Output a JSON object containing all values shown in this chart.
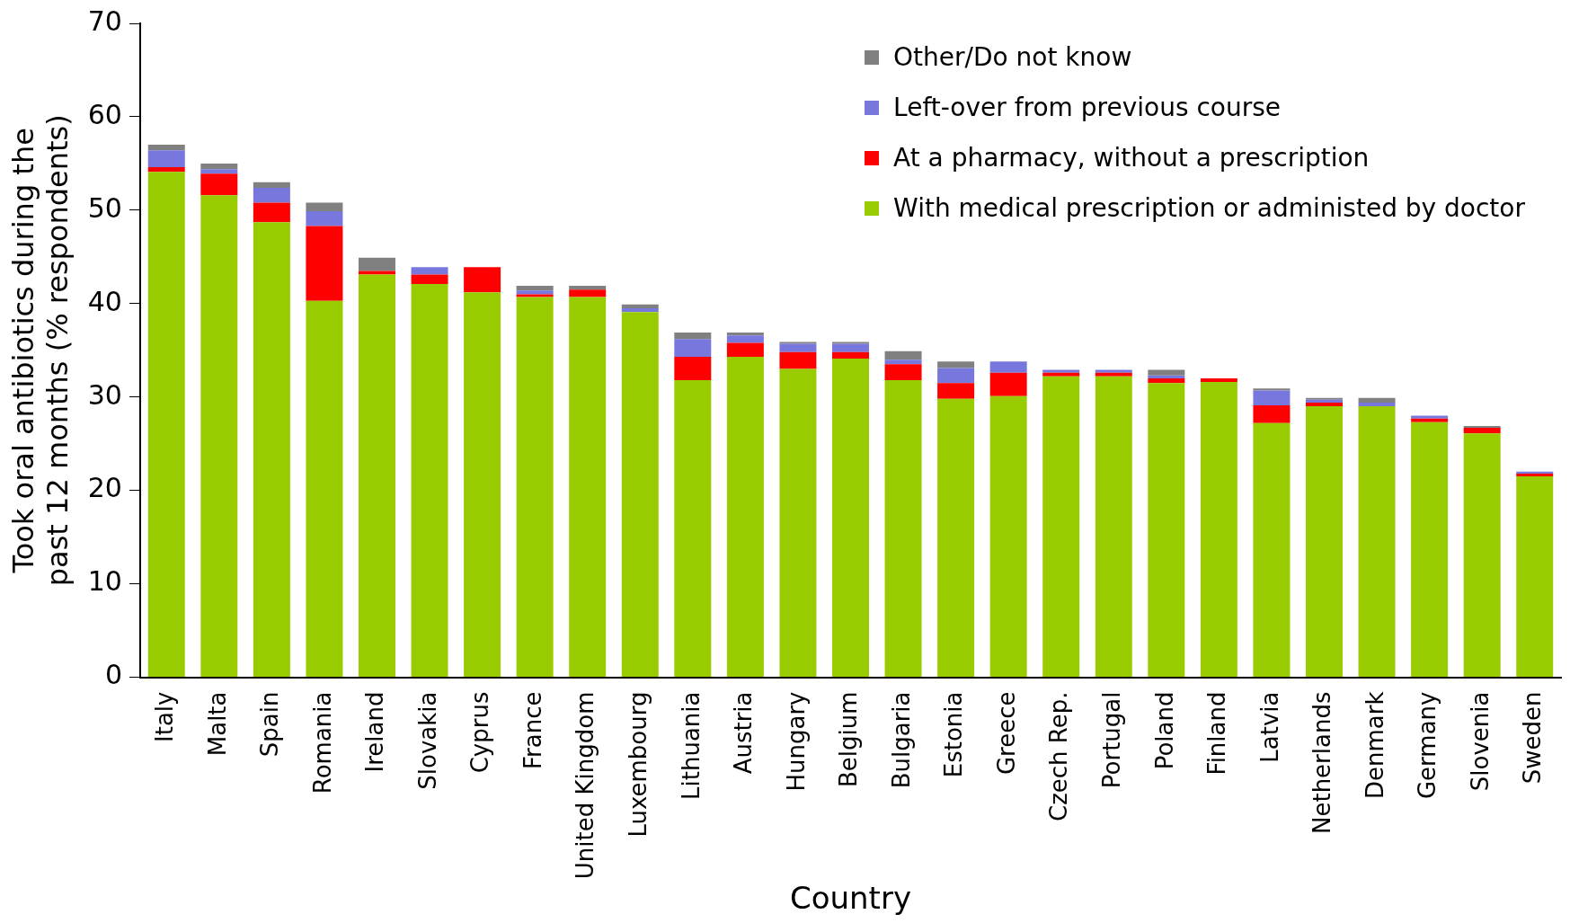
{
  "chart_data": {
    "type": "bar",
    "stacked": true,
    "xlabel": "Country",
    "ylabel": "Took oral antibiotics during the past 12 months (% respondents)",
    "categories": [
      "Italy",
      "Malta",
      "Spain",
      "Romania",
      "Ireland",
      "Slovakia",
      "Cyprus",
      "France",
      "United Kingdom",
      "Luxembourg",
      "Lithuania",
      "Austria",
      "Hungary",
      "Belgium",
      "Bulgaria",
      "Estonia",
      "Greece",
      "Czech Rep.",
      "Portugal",
      "Poland",
      "Finland",
      "Latvia",
      "Netherlands",
      "Denmark",
      "Germany",
      "Slovenia",
      "Sweden"
    ],
    "series": [
      {
        "name": "With medical prescription or administed by doctor",
        "color": "#99cc00",
        "values": [
          54.1,
          51.6,
          48.7,
          40.3,
          43.1,
          42.1,
          41.2,
          40.7,
          40.7,
          39.1,
          31.8,
          34.3,
          33.0,
          34.1,
          31.8,
          29.8,
          30.1,
          32.2,
          32.2,
          31.5,
          31.6,
          27.2,
          29.0,
          29.0,
          27.3,
          26.1,
          21.5
        ]
      },
      {
        "name": "At a pharmacy, without a prescription",
        "color": "#ff0000",
        "values": [
          0.5,
          2.3,
          2.1,
          8.0,
          0.4,
          1.0,
          2.7,
          0.3,
          0.8,
          0,
          2.5,
          1.5,
          1.8,
          0.7,
          1.7,
          1.7,
          2.5,
          0.4,
          0.4,
          0.5,
          0.4,
          1.9,
          0.4,
          0,
          0.4,
          0.6,
          0.3
        ]
      },
      {
        "name": "Left-over from previous course",
        "color": "#7777dd",
        "values": [
          1.8,
          0.5,
          1.6,
          1.6,
          0,
          0.8,
          0,
          0.4,
          0,
          0.4,
          1.9,
          0.8,
          0.9,
          0.9,
          0.5,
          1.6,
          1.2,
          0.3,
          0.3,
          0.3,
          0,
          1.6,
          0.3,
          0.4,
          0.3,
          0,
          0.2
        ]
      },
      {
        "name": "Other/Do not know",
        "color": "#808080",
        "values": [
          0.6,
          0.6,
          0.6,
          0.9,
          1.4,
          0,
          0,
          0.5,
          0.4,
          0.4,
          0.7,
          0.3,
          0.2,
          0.2,
          0.9,
          0.7,
          0,
          0,
          0,
          0.6,
          0,
          0.2,
          0.2,
          0.5,
          0,
          0.2,
          0
        ]
      }
    ],
    "ylim": [
      0,
      70
    ],
    "yticks": [
      0,
      10,
      20,
      30,
      40,
      50,
      60,
      70
    ],
    "grid": false,
    "legend": "top right"
  }
}
